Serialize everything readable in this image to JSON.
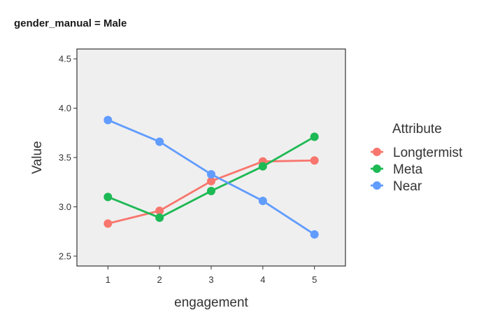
{
  "chart_data": {
    "type": "line",
    "title": "gender_manual = Male",
    "xlabel": "engagement",
    "ylabel": "Value",
    "x": [
      1,
      2,
      3,
      4,
      5
    ],
    "x_tick_labels": [
      "1",
      "2",
      "3",
      "4",
      "5"
    ],
    "xlim": [
      0.4,
      5.6
    ],
    "ylim": [
      2.4,
      4.6
    ],
    "y_ticks": [
      2.5,
      3.0,
      3.5,
      4.0,
      4.5
    ],
    "y_tick_labels": [
      "2.5",
      "3.0",
      "3.5",
      "4.0",
      "4.5"
    ],
    "grid": false,
    "legend_title": "Attribute",
    "legend_position": "right",
    "series": [
      {
        "name": "Longtermist",
        "color": "#F8766D",
        "values": [
          2.83,
          2.96,
          3.26,
          3.46,
          3.47
        ]
      },
      {
        "name": "Meta",
        "color": "#1DB954",
        "values": [
          3.1,
          2.89,
          3.16,
          3.41,
          3.71
        ]
      },
      {
        "name": "Near",
        "color": "#619CFF",
        "values": [
          3.88,
          3.66,
          3.33,
          3.06,
          2.72
        ]
      }
    ]
  }
}
